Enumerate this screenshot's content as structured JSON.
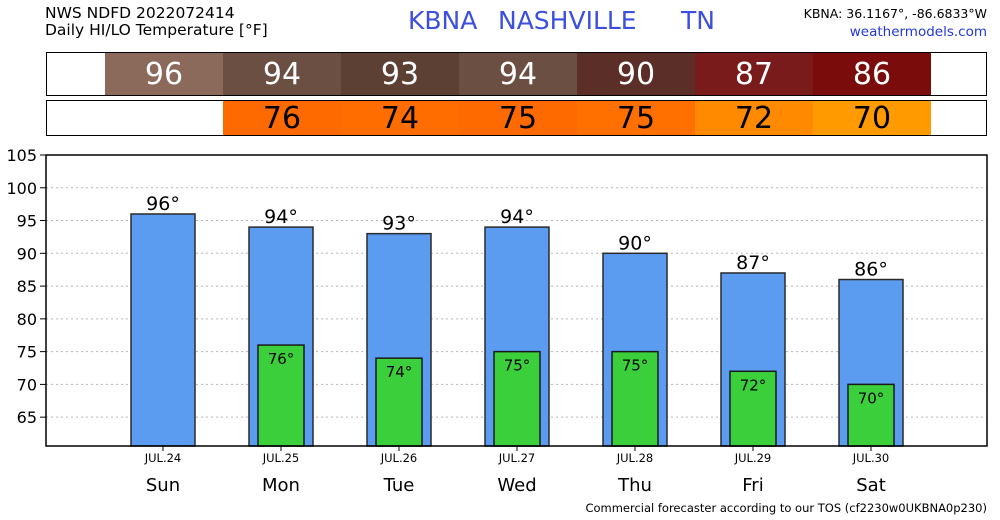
{
  "header": {
    "title_line1": "NWS NDFD 2022072414",
    "title_line2": "Daily HI/LO Temperature [°F]",
    "station_id": "KBNA",
    "station_name": "NASHVILLE",
    "state": "TN",
    "coords": "KBNA: 36.1167°, -86.6833°W",
    "site": "weathermodels.com"
  },
  "footer": {
    "text": "Commercial forecaster according to our TOS (cf2230w0UKBNA0p230)"
  },
  "colors": {
    "hi_bar": "#5b9cf0",
    "lo_bar": "#3ccf3c",
    "hi_strip": [
      "#8b6a5b",
      "#6c4f43",
      "#5c4033",
      "#6c4f43",
      "#5c2e28",
      "#7a1b1b",
      "#7b0c0c"
    ],
    "lo_strip": [
      "#ff6a00",
      "#ff6c00",
      "#ff6a00",
      "#ff7000",
      "#ff8a00",
      "#ff9a00"
    ]
  },
  "chart_data": {
    "type": "bar",
    "categories": [
      "Sun",
      "Mon",
      "Tue",
      "Wed",
      "Thu",
      "Fri",
      "Sat"
    ],
    "dates": [
      "JUL.24",
      "JUL.25",
      "JUL.26",
      "JUL.27",
      "JUL.28",
      "JUL.29",
      "JUL.30"
    ],
    "series": [
      {
        "values": [
          96,
          94,
          93,
          94,
          90,
          87,
          86
        ]
      },
      {
        "values": [
          null,
          76,
          74,
          75,
          75,
          72,
          70
        ]
      }
    ],
    "hi_labels": [
      "96°",
      "94°",
      "93°",
      "94°",
      "90°",
      "87°",
      "86°"
    ],
    "lo_labels": [
      "",
      "76°",
      "74°",
      "75°",
      "75°",
      "72°",
      "70°"
    ],
    "hi_strip_values": [
      "96",
      "94",
      "93",
      "94",
      "90",
      "87",
      "86"
    ],
    "lo_strip_values": [
      "",
      "76",
      "74",
      "75",
      "75",
      "72",
      "70"
    ],
    "y_ticks": [
      65,
      70,
      75,
      80,
      85,
      90,
      95,
      100,
      105
    ],
    "y_tick_labels": [
      "65",
      "70",
      "75",
      "80",
      "85",
      "90",
      "95",
      "100",
      "105"
    ],
    "ylim": [
      60.6,
      105
    ],
    "grid": true,
    "xlabel": "",
    "ylabel": "",
    "title": ""
  }
}
